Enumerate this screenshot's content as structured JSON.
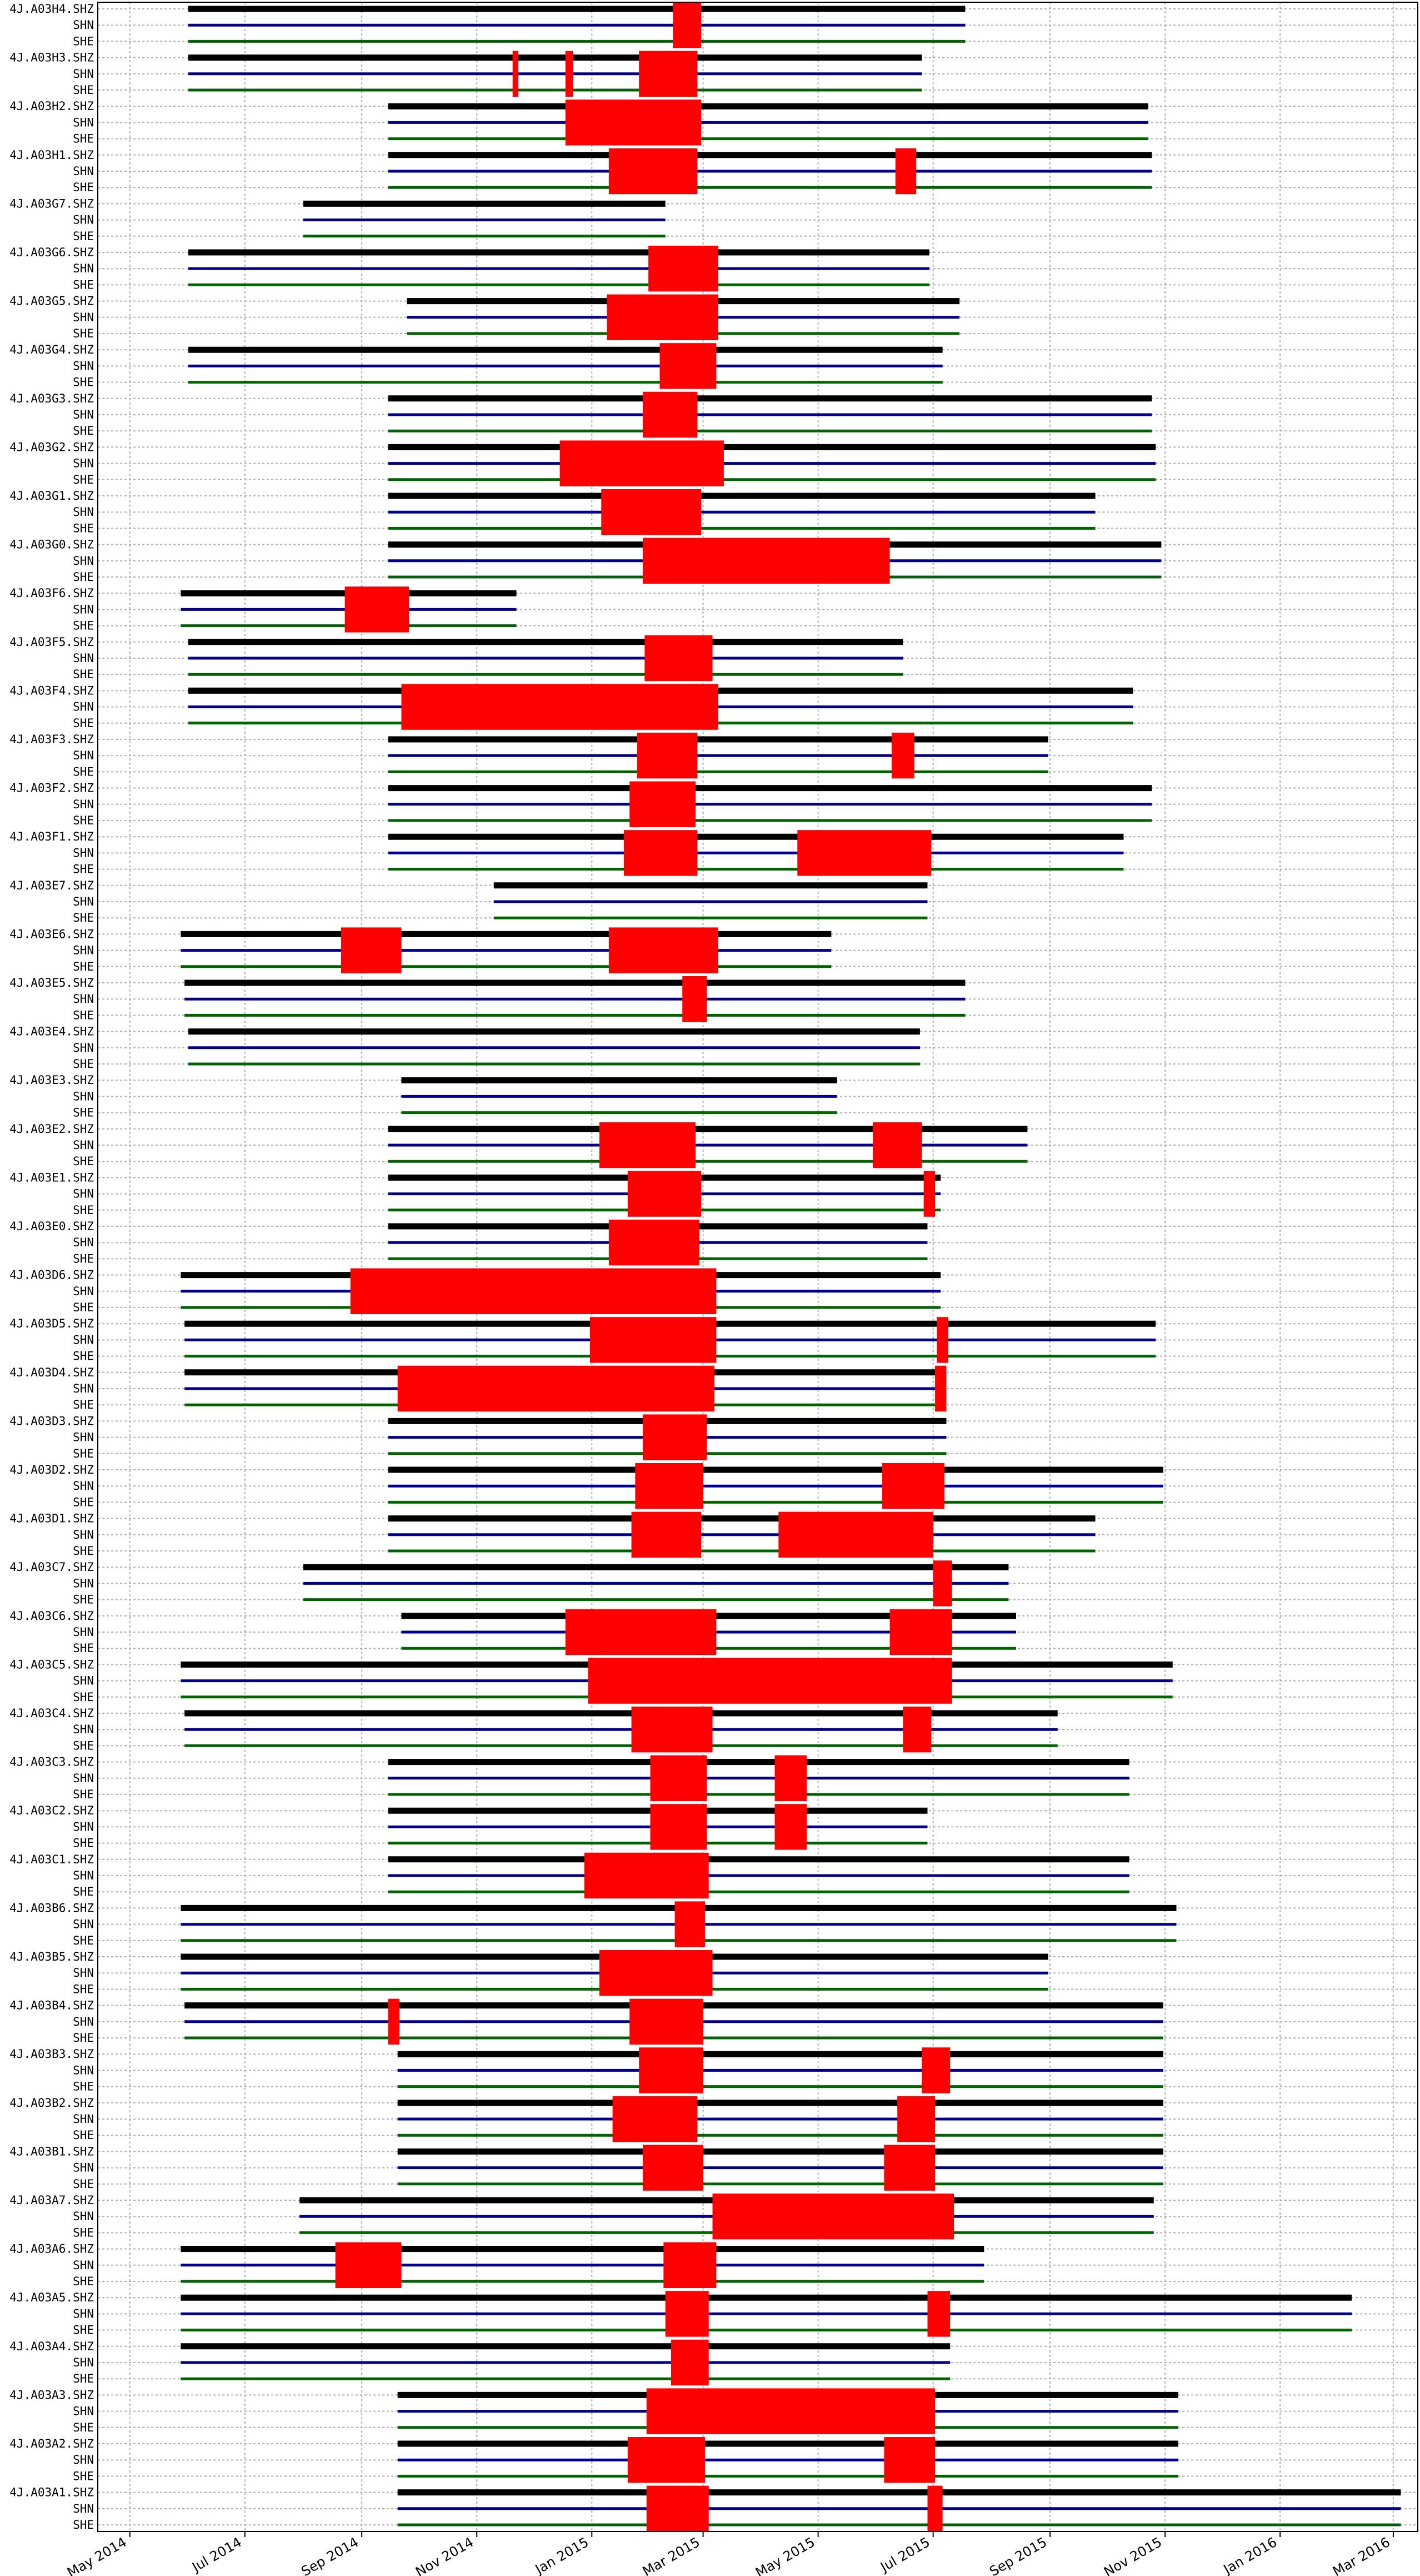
{
  "chart_data": {
    "type": "timeline",
    "title": "",
    "xlabel": "",
    "ylabel": "",
    "xlim": [
      "2014-04-14",
      "2016-03-14"
    ],
    "x_ticks": [
      {
        "date": "2014-05-01",
        "label": "May 2014"
      },
      {
        "date": "2014-07-01",
        "label": "Jul 2014"
      },
      {
        "date": "2014-09-01",
        "label": "Sep 2014"
      },
      {
        "date": "2014-11-01",
        "label": "Nov 2014"
      },
      {
        "date": "2015-01-01",
        "label": "Jan 2015"
      },
      {
        "date": "2015-03-01",
        "label": "Mar 2015"
      },
      {
        "date": "2015-05-01",
        "label": "May 2015"
      },
      {
        "date": "2015-07-01",
        "label": "Jul 2015"
      },
      {
        "date": "2015-09-01",
        "label": "Sep 2015"
      },
      {
        "date": "2015-11-01",
        "label": "Nov 2015"
      },
      {
        "date": "2016-01-01",
        "label": "Jan 2016"
      },
      {
        "date": "2016-03-01",
        "label": "Mar 2016"
      }
    ],
    "grid": true,
    "colors": {
      "SHZ": "#000000",
      "SHN": "#00008b",
      "SHE": "#006400",
      "gap": "#ff0000"
    },
    "stations": [
      {
        "name": "4J.A03H4.",
        "start": "2014-06-01",
        "end": "2015-07-18",
        "gaps": [
          [
            "2015-02-13",
            "2015-02-28"
          ]
        ]
      },
      {
        "name": "4J.A03H3.",
        "start": "2014-06-01",
        "end": "2015-06-25",
        "gaps": [
          [
            "2015-01-26",
            "2015-02-26"
          ],
          [
            "2014-12-18",
            "2014-12-22"
          ],
          [
            "2014-11-20",
            "2014-11-23"
          ]
        ]
      },
      {
        "name": "4J.A03H2.",
        "start": "2014-09-15",
        "end": "2015-10-23",
        "gaps": [
          [
            "2014-12-18",
            "2015-02-28"
          ]
        ]
      },
      {
        "name": "4J.A03H1.",
        "start": "2014-09-15",
        "end": "2015-10-25",
        "gaps": [
          [
            "2015-01-10",
            "2015-02-26"
          ],
          [
            "2015-06-11",
            "2015-06-22"
          ]
        ]
      },
      {
        "name": "4J.A03G7.",
        "start": "2014-08-01",
        "end": "2015-02-09",
        "gaps": []
      },
      {
        "name": "4J.A03G6.",
        "start": "2014-06-01",
        "end": "2015-06-29",
        "gaps": [
          [
            "2015-01-31",
            "2015-03-09"
          ]
        ]
      },
      {
        "name": "4J.A03G5.",
        "start": "2014-09-25",
        "end": "2015-07-15",
        "gaps": [
          [
            "2015-01-09",
            "2015-03-09"
          ]
        ]
      },
      {
        "name": "4J.A03G4.",
        "start": "2014-06-01",
        "end": "2015-07-06",
        "gaps": [
          [
            "2015-02-06",
            "2015-03-08"
          ]
        ]
      },
      {
        "name": "4J.A03G3.",
        "start": "2014-09-15",
        "end": "2015-10-25",
        "gaps": [
          [
            "2015-01-28",
            "2015-02-26"
          ]
        ]
      },
      {
        "name": "4J.A03G2.",
        "start": "2014-09-15",
        "end": "2015-10-27",
        "gaps": [
          [
            "2014-12-15",
            "2015-03-12"
          ]
        ]
      },
      {
        "name": "4J.A03G1.",
        "start": "2014-09-15",
        "end": "2015-09-25",
        "gaps": [
          [
            "2015-01-06",
            "2015-02-28"
          ]
        ]
      },
      {
        "name": "4J.A03G0.",
        "start": "2014-09-15",
        "end": "2015-10-30",
        "gaps": [
          [
            "2015-01-28",
            "2015-06-08"
          ]
        ]
      },
      {
        "name": "4J.A03F6.",
        "start": "2014-05-28",
        "end": "2014-11-22",
        "gaps": [
          [
            "2014-08-23",
            "2014-09-26"
          ]
        ]
      },
      {
        "name": "4J.A03F5.",
        "start": "2014-06-01",
        "end": "2015-06-15",
        "gaps": [
          [
            "2015-01-29",
            "2015-03-06"
          ]
        ]
      },
      {
        "name": "4J.A03F4.",
        "start": "2014-06-01",
        "end": "2015-10-15",
        "gaps": [
          [
            "2014-09-22",
            "2015-03-09"
          ]
        ]
      },
      {
        "name": "4J.A03F3.",
        "start": "2014-09-15",
        "end": "2015-08-31",
        "gaps": [
          [
            "2015-01-25",
            "2015-02-26"
          ],
          [
            "2015-06-09",
            "2015-06-21"
          ]
        ]
      },
      {
        "name": "4J.A03F2.",
        "start": "2014-09-15",
        "end": "2015-10-25",
        "gaps": [
          [
            "2015-01-21",
            "2015-02-25"
          ]
        ]
      },
      {
        "name": "4J.A03F1.",
        "start": "2014-09-15",
        "end": "2015-10-10",
        "gaps": [
          [
            "2015-01-18",
            "2015-02-26"
          ],
          [
            "2015-04-20",
            "2015-06-30"
          ]
        ]
      },
      {
        "name": "4J.A03E7.",
        "start": "2014-11-10",
        "end": "2015-06-28",
        "gaps": []
      },
      {
        "name": "4J.A03E6.",
        "start": "2014-05-28",
        "end": "2015-05-08",
        "gaps": [
          [
            "2014-08-21",
            "2014-09-22"
          ],
          [
            "2015-01-10",
            "2015-03-09"
          ]
        ]
      },
      {
        "name": "4J.A03E5.",
        "start": "2014-05-30",
        "end": "2015-07-18",
        "gaps": [
          [
            "2015-02-18",
            "2015-03-03"
          ]
        ]
      },
      {
        "name": "4J.A03E4.",
        "start": "2014-06-01",
        "end": "2015-06-24",
        "gaps": []
      },
      {
        "name": "4J.A03E3.",
        "start": "2014-09-22",
        "end": "2015-05-11",
        "gaps": []
      },
      {
        "name": "4J.A03E2.",
        "start": "2014-09-15",
        "end": "2015-08-20",
        "gaps": [
          [
            "2015-01-05",
            "2015-02-25"
          ],
          [
            "2015-05-30",
            "2015-06-25"
          ]
        ]
      },
      {
        "name": "4J.A03E1.",
        "start": "2014-09-15",
        "end": "2015-07-05",
        "gaps": [
          [
            "2015-01-20",
            "2015-02-28"
          ],
          [
            "2015-06-26",
            "2015-07-02"
          ]
        ]
      },
      {
        "name": "4J.A03E0.",
        "start": "2014-09-15",
        "end": "2015-06-28",
        "gaps": [
          [
            "2015-01-10",
            "2015-02-27"
          ]
        ]
      },
      {
        "name": "4J.A03D6.",
        "start": "2014-05-28",
        "end": "2015-07-05",
        "gaps": [
          [
            "2014-08-26",
            "2015-03-08"
          ]
        ]
      },
      {
        "name": "4J.A03D5.",
        "start": "2014-05-30",
        "end": "2015-10-27",
        "gaps": [
          [
            "2014-12-31",
            "2015-03-08"
          ],
          [
            "2015-07-03",
            "2015-07-09"
          ]
        ]
      },
      {
        "name": "4J.A03D4.",
        "start": "2014-05-30",
        "end": "2015-07-07",
        "gaps": [
          [
            "2014-09-20",
            "2015-03-07"
          ],
          [
            "2015-07-02",
            "2015-07-08"
          ]
        ]
      },
      {
        "name": "4J.A03D3.",
        "start": "2014-09-15",
        "end": "2015-07-08",
        "gaps": [
          [
            "2015-01-28",
            "2015-03-03"
          ]
        ]
      },
      {
        "name": "4J.A03D2.",
        "start": "2014-09-15",
        "end": "2015-10-31",
        "gaps": [
          [
            "2015-01-24",
            "2015-03-01"
          ],
          [
            "2015-06-04",
            "2015-07-07"
          ]
        ]
      },
      {
        "name": "4J.A03D1.",
        "start": "2014-09-15",
        "end": "2015-09-25",
        "gaps": [
          [
            "2015-01-22",
            "2015-02-28"
          ],
          [
            "2015-04-10",
            "2015-07-01"
          ]
        ]
      },
      {
        "name": "4J.A03C7.",
        "start": "2014-08-01",
        "end": "2015-08-10",
        "gaps": [
          [
            "2015-07-01",
            "2015-07-11"
          ]
        ]
      },
      {
        "name": "4J.A03C6.",
        "start": "2014-09-22",
        "end": "2015-08-14",
        "gaps": [
          [
            "2014-12-18",
            "2015-03-08"
          ],
          [
            "2015-06-08",
            "2015-07-11"
          ]
        ]
      },
      {
        "name": "4J.A03C5.",
        "start": "2014-05-28",
        "end": "2015-11-05",
        "gaps": [
          [
            "2014-12-30",
            "2015-07-11"
          ]
        ]
      },
      {
        "name": "4J.A03C4.",
        "start": "2014-05-30",
        "end": "2015-09-05",
        "gaps": [
          [
            "2015-01-22",
            "2015-03-06"
          ],
          [
            "2015-06-15",
            "2015-06-30"
          ]
        ]
      },
      {
        "name": "4J.A03C3.",
        "start": "2014-09-15",
        "end": "2015-10-13",
        "gaps": [
          [
            "2015-02-01",
            "2015-03-03"
          ],
          [
            "2015-04-08",
            "2015-04-25"
          ]
        ]
      },
      {
        "name": "4J.A03C2.",
        "start": "2014-09-15",
        "end": "2015-06-28",
        "gaps": [
          [
            "2015-02-01",
            "2015-03-03"
          ],
          [
            "2015-04-08",
            "2015-04-25"
          ]
        ]
      },
      {
        "name": "4J.A03C1.",
        "start": "2014-09-15",
        "end": "2015-10-13",
        "gaps": [
          [
            "2014-12-28",
            "2015-03-04"
          ]
        ]
      },
      {
        "name": "4J.A03B6.",
        "start": "2014-05-28",
        "end": "2015-11-07",
        "gaps": [
          [
            "2015-02-14",
            "2015-03-02"
          ]
        ]
      },
      {
        "name": "4J.A03B5.",
        "start": "2014-05-28",
        "end": "2015-08-31",
        "gaps": [
          [
            "2015-01-05",
            "2015-03-06"
          ]
        ]
      },
      {
        "name": "4J.A03B4.",
        "start": "2014-05-30",
        "end": "2015-10-31",
        "gaps": [
          [
            "2015-01-21",
            "2015-03-01"
          ],
          [
            "2014-09-15",
            "2014-09-21"
          ]
        ]
      },
      {
        "name": "4J.A03B3.",
        "start": "2014-09-20",
        "end": "2015-10-31",
        "gaps": [
          [
            "2015-01-26",
            "2015-03-01"
          ],
          [
            "2015-06-25",
            "2015-07-10"
          ]
        ]
      },
      {
        "name": "4J.A03B2.",
        "start": "2014-09-20",
        "end": "2015-10-31",
        "gaps": [
          [
            "2015-01-12",
            "2015-02-26"
          ],
          [
            "2015-06-12",
            "2015-07-02"
          ]
        ]
      },
      {
        "name": "4J.A03B1.",
        "start": "2014-09-20",
        "end": "2015-10-31",
        "gaps": [
          [
            "2015-01-28",
            "2015-03-01"
          ],
          [
            "2015-06-05",
            "2015-07-02"
          ]
        ]
      },
      {
        "name": "4J.A03A7.",
        "start": "2014-07-30",
        "end": "2015-10-26",
        "gaps": [
          [
            "2015-03-06",
            "2015-07-12"
          ]
        ]
      },
      {
        "name": "4J.A03A6.",
        "start": "2014-05-28",
        "end": "2015-07-28",
        "gaps": [
          [
            "2014-08-18",
            "2014-09-22"
          ],
          [
            "2015-02-08",
            "2015-03-08"
          ]
        ]
      },
      {
        "name": "4J.A03A5.",
        "start": "2014-05-28",
        "end": "2016-02-08",
        "gaps": [
          [
            "2015-02-09",
            "2015-03-04"
          ],
          [
            "2015-06-28",
            "2015-07-10"
          ]
        ]
      },
      {
        "name": "4J.A03A4.",
        "start": "2014-05-28",
        "end": "2015-07-10",
        "gaps": [
          [
            "2015-02-12",
            "2015-03-04"
          ]
        ]
      },
      {
        "name": "4J.A03A3.",
        "start": "2014-09-20",
        "end": "2015-11-08",
        "gaps": [
          [
            "2015-01-30",
            "2015-07-02"
          ]
        ]
      },
      {
        "name": "4J.A03A2.",
        "start": "2014-09-20",
        "end": "2015-11-08",
        "gaps": [
          [
            "2015-01-20",
            "2015-03-02"
          ],
          [
            "2015-06-05",
            "2015-07-02"
          ]
        ]
      },
      {
        "name": "4J.A03A1.",
        "start": "2014-09-20",
        "end": "2016-03-05",
        "gaps": [
          [
            "2015-01-30",
            "2015-03-04"
          ],
          [
            "2015-06-28",
            "2015-07-06"
          ]
        ]
      }
    ]
  }
}
